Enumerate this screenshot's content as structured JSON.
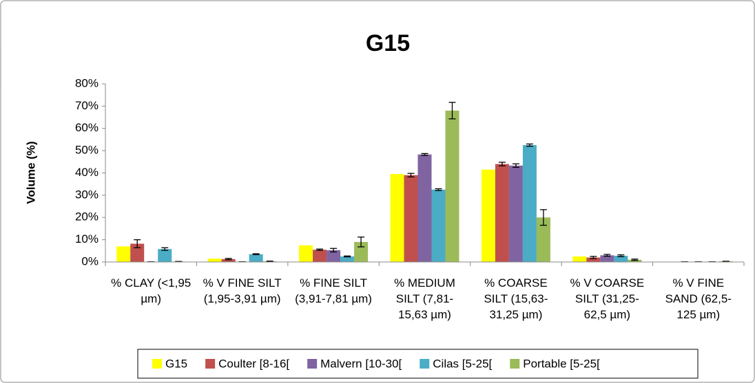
{
  "chart_data": {
    "type": "bar",
    "title": "G15",
    "y_label": "Volume (%)",
    "categories": [
      "% CLAY (<1,95 µm)",
      "% V FINE SILT (1,95-3,91 µm)",
      "% FINE SILT (3,91-7,81 µm)",
      "% MEDIUM SILT (7,81-15,63 µm)",
      "% COARSE SILT (15,63-31,25 µm)",
      "% V COARSE SILT (31,25-62,5 µm)",
      "% V FINE SAND (62,5-125 µm)"
    ],
    "series": [
      {
        "name": "G15",
        "color": "#ffff00",
        "values": [
          7,
          1.5,
          7.5,
          39.5,
          41.5,
          2.5,
          0
        ]
      },
      {
        "name": "Coulter [8-16[",
        "color": "#c0504d",
        "values": [
          8.2,
          1.3,
          5.5,
          39,
          44,
          2,
          0.1
        ],
        "errors": [
          1.8,
          0.3,
          0.3,
          0.8,
          0.8,
          0.5,
          0
        ]
      },
      {
        "name": "Malvern [10-30[",
        "color": "#8064a2",
        "values": [
          0.1,
          0.1,
          5.3,
          48.3,
          43.3,
          3,
          0.1
        ],
        "errors": [
          0,
          0,
          0.8,
          0.4,
          0.8,
          0.4,
          0
        ]
      },
      {
        "name": "Cilas [5-25[",
        "color": "#4bacc6",
        "values": [
          5.8,
          3.5,
          2.5,
          32.5,
          52.5,
          2.8,
          0.1
        ],
        "errors": [
          0.6,
          0.2,
          0.2,
          0.4,
          0.5,
          0.4,
          0
        ]
      },
      {
        "name": "Portable [5-25[",
        "color": "#9bbb59",
        "values": [
          0.2,
          0.3,
          9,
          68,
          20,
          1,
          0.3
        ],
        "errors": [
          0,
          0.1,
          2.2,
          3.7,
          3.5,
          0.3,
          0
        ]
      }
    ],
    "ylim": [
      0,
      80
    ],
    "yticks": [
      {
        "value": 0,
        "label": "0%"
      },
      {
        "value": 10,
        "label": "10%"
      },
      {
        "value": 20,
        "label": "20%"
      },
      {
        "value": 30,
        "label": "30%"
      },
      {
        "value": 40,
        "label": "40%"
      },
      {
        "value": 50,
        "label": "50%"
      },
      {
        "value": 60,
        "label": "60%"
      },
      {
        "value": 70,
        "label": "70%"
      },
      {
        "value": 80,
        "label": "80%"
      }
    ],
    "legend": "bottom"
  }
}
